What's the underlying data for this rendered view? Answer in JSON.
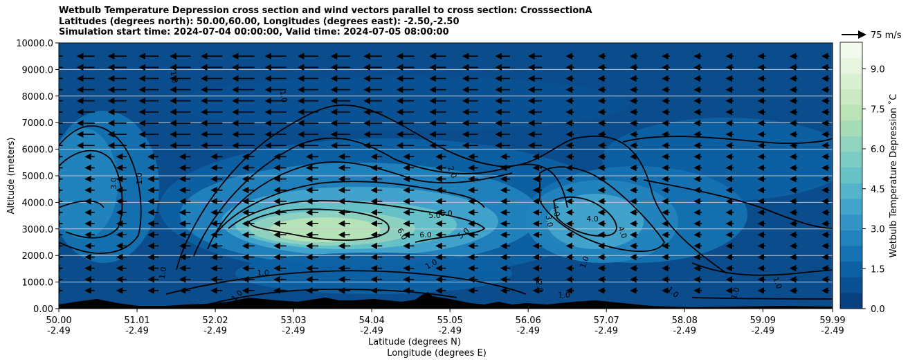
{
  "title_lines": [
    "Wetbulb Temperature Depression cross section and wind vectors parallel to cross section: CrosssectionA",
    "Latitudes (degrees north): 50.00,60.00, Longitudes (degrees east): -2.50,-2.50",
    "Simulation start time: 2024-07-04 00:00:00, Valid time: 2024-07-05 08:00:00"
  ],
  "chart_data": {
    "type": "heatmap",
    "subtype": "filled contour cross section with line contours and wind quiver",
    "title": "Wetbulb Temperature Depression cross section and wind vectors parallel to cross section: CrosssectionA",
    "ylabel": "Altitude (meters)",
    "xlabel_lines": [
      "Latitude (degrees N)",
      "Longitude (degrees E)"
    ],
    "ylim": [
      0,
      10000
    ],
    "xlim": [
      50.0,
      59.99
    ],
    "y_ticks": [
      "0.00",
      "1000.0",
      "2000.0",
      "3000.0",
      "4000.0",
      "5000.0",
      "6000.0",
      "7000.0",
      "8000.0",
      "9000.0",
      "10000.0"
    ],
    "x_ticks": [
      {
        "lat": "50.00",
        "lon": "-2.49"
      },
      {
        "lat": "51.01",
        "lon": "-2.49"
      },
      {
        "lat": "52.02",
        "lon": "-2.49"
      },
      {
        "lat": "53.03",
        "lon": "-2.49"
      },
      {
        "lat": "54.04",
        "lon": "-2.49"
      },
      {
        "lat": "55.05",
        "lon": "-2.49"
      },
      {
        "lat": "56.06",
        "lon": "-2.49"
      },
      {
        "lat": "57.07",
        "lon": "-2.49"
      },
      {
        "lat": "58.08",
        "lon": "-2.49"
      },
      {
        "lat": "59.09",
        "lon": "-2.49"
      },
      {
        "lat": "59.99",
        "lon": "-2.49"
      }
    ],
    "horizontal_grid": true,
    "colorbar": {
      "label": "Wetbulb Temperature Depression ˚C",
      "range": [
        0,
        10
      ],
      "ticks": [
        "0.0",
        "1.5",
        "3.0",
        "4.5",
        "6.0",
        "7.5",
        "9.0"
      ],
      "colormap": "GnBu_r",
      "colors": [
        "#084081",
        "#0a5193",
        "#0d61a3",
        "#1672b2",
        "#2383bd",
        "#3394c5",
        "#44a5cc",
        "#56b5cc",
        "#68c2c8",
        "#7ccbc5",
        "#91d3bf",
        "#a6dcb7",
        "#bae3b6",
        "#cbe9c2",
        "#daf0d2",
        "#e7f5e1",
        "#f2faee"
      ]
    },
    "quiver_key": {
      "label": "75 m/s"
    },
    "contour_labels": [
      "1.0",
      "2.0",
      "3.0",
      "4.0",
      "5.0",
      "6.0"
    ],
    "features": [
      {
        "desc": "moist layer in the upper troposphere, depression near 0",
        "lat_range": [
          50.0,
          59.99
        ],
        "alt_range": [
          6500,
          10000
        ]
      },
      {
        "desc": "dry tongue maximum",
        "lat_center": 53.9,
        "alt_center": 3000,
        "max_value": 7.5
      },
      {
        "desc": "secondary dry region",
        "lat_center": 50.4,
        "alt_center": 4200,
        "max_value": 3.5
      },
      {
        "desc": "secondary dry region",
        "lat_center": 57.2,
        "alt_center": 3200,
        "max_value": 4.5
      }
    ]
  }
}
